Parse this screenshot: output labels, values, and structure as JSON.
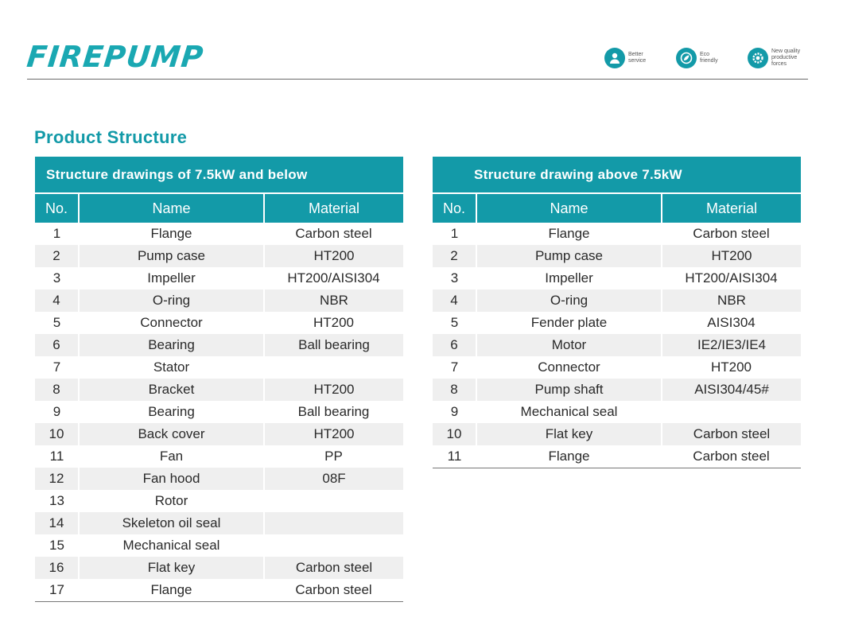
{
  "header": {
    "logo": "FIREPUMP",
    "badges": [
      {
        "icon": "person-service-icon",
        "text": "Better\nservice"
      },
      {
        "icon": "eco-leaf-icon",
        "text": "Eco\nfriendly"
      },
      {
        "icon": "gear-quality-icon",
        "text": "New quality\nproductive\nforces"
      }
    ],
    "accent_color": "#139aa8"
  },
  "section_title": "Product Structure",
  "columns": {
    "no": "No.",
    "name": "Name",
    "material": "Material"
  },
  "left_table": {
    "title": "Structure drawings of 7.5kW and below",
    "rows": [
      {
        "no": "1",
        "name": "Flange",
        "material": "Carbon steel"
      },
      {
        "no": "2",
        "name": "Pump case",
        "material": "HT200"
      },
      {
        "no": "3",
        "name": "Impeller",
        "material": "HT200/AISI304"
      },
      {
        "no": "4",
        "name": "O-ring",
        "material": "NBR"
      },
      {
        "no": "5",
        "name": "Connector",
        "material": "HT200"
      },
      {
        "no": "6",
        "name": "Bearing",
        "material": "Ball bearing"
      },
      {
        "no": "7",
        "name": "Stator",
        "material": ""
      },
      {
        "no": "8",
        "name": "Bracket",
        "material": "HT200"
      },
      {
        "no": "9",
        "name": "Bearing",
        "material": "Ball bearing"
      },
      {
        "no": "10",
        "name": "Back cover",
        "material": "HT200"
      },
      {
        "no": "11",
        "name": "Fan",
        "material": "PP"
      },
      {
        "no": "12",
        "name": "Fan hood",
        "material": "08F"
      },
      {
        "no": "13",
        "name": "Rotor",
        "material": ""
      },
      {
        "no": "14",
        "name": "Skeleton oil seal",
        "material": ""
      },
      {
        "no": "15",
        "name": "Mechanical seal",
        "material": ""
      },
      {
        "no": "16",
        "name": "Flat key",
        "material": "Carbon steel"
      },
      {
        "no": "17",
        "name": "Flange",
        "material": "Carbon steel"
      }
    ]
  },
  "right_table": {
    "title": "Structure drawing above 7.5kW",
    "rows": [
      {
        "no": "1",
        "name": "Flange",
        "material": "Carbon steel"
      },
      {
        "no": "2",
        "name": "Pump case",
        "material": "HT200"
      },
      {
        "no": "3",
        "name": "Impeller",
        "material": "HT200/AISI304"
      },
      {
        "no": "4",
        "name": "O-ring",
        "material": "NBR"
      },
      {
        "no": "5",
        "name": "Fender plate",
        "material": "AISI304"
      },
      {
        "no": "6",
        "name": "Motor",
        "material": "IE2/IE3/IE4"
      },
      {
        "no": "7",
        "name": "Connector",
        "material": "HT200"
      },
      {
        "no": "8",
        "name": "Pump shaft",
        "material": "AISI304/45#"
      },
      {
        "no": "9",
        "name": "Mechanical seal",
        "material": ""
      },
      {
        "no": "10",
        "name": "Flat key",
        "material": "Carbon steel"
      },
      {
        "no": "11",
        "name": "Flange",
        "material": "Carbon steel"
      }
    ]
  }
}
